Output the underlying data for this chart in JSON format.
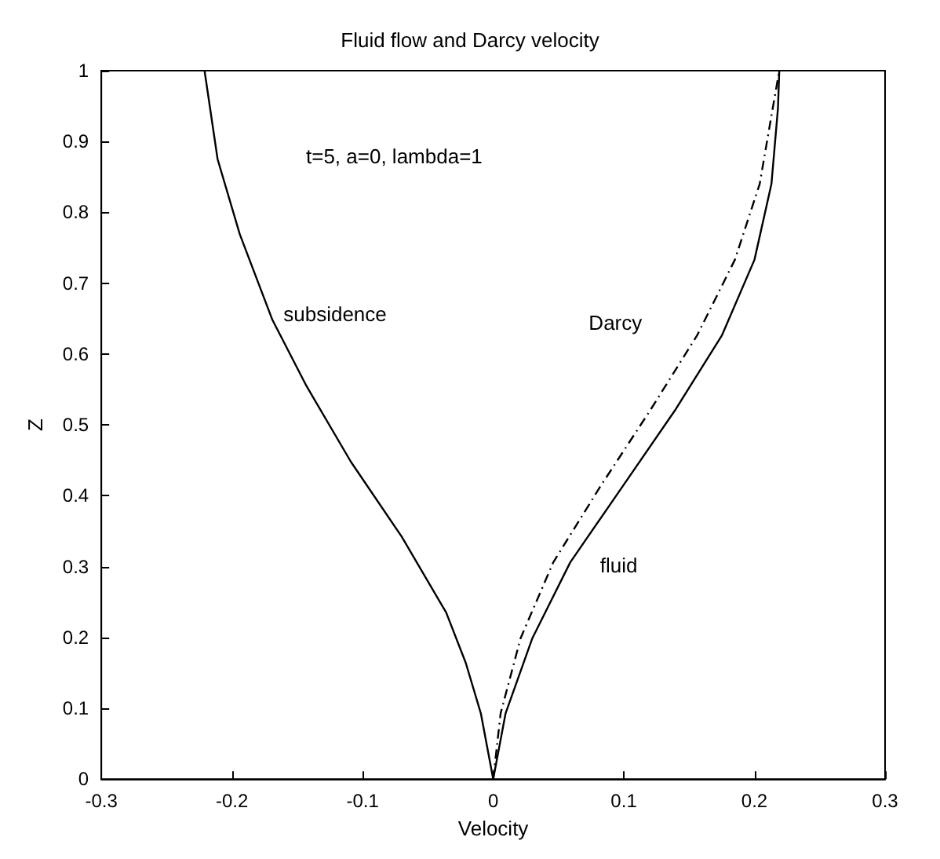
{
  "chart_data": {
    "type": "line",
    "title": "Fluid flow and Darcy velocity",
    "xlabel": "Velocity",
    "ylabel": "Z",
    "annotations": [
      "t=5, a=0, lambda=1"
    ],
    "series": [
      {
        "name": "subsidence",
        "color": "#000000",
        "line_style": "solid",
        "x": [
          0,
          -0.0095,
          -0.021,
          -0.036,
          -0.07,
          -0.109,
          -0.143,
          -0.169,
          -0.194,
          -0.211,
          -0.221
        ],
        "values": [
          0,
          0.093,
          0.164,
          0.235,
          0.342,
          0.448,
          0.555,
          0.648,
          0.769,
          0.875,
          1
        ]
      },
      {
        "name": "Darcy",
        "color": "#000000",
        "line_style": "dashdot",
        "x": [
          0,
          0.0057,
          0.021,
          0.046,
          0.082,
          0.12,
          0.156,
          0.185,
          0.204,
          0.214,
          0.219
        ],
        "values": [
          0,
          0.093,
          0.199,
          0.306,
          0.413,
          0.52,
          0.626,
          0.733,
          0.84,
          0.947,
          1
        ]
      },
      {
        "name": "fluid",
        "color": "#000000",
        "line_style": "solid",
        "x": [
          0,
          0.0095,
          0.03,
          0.059,
          0.099,
          0.139,
          0.175,
          0.2,
          0.213,
          0.218,
          0.219
        ],
        "values": [
          0,
          0.093,
          0.199,
          0.306,
          0.413,
          0.52,
          0.626,
          0.733,
          0.84,
          0.947,
          1
        ]
      }
    ],
    "xlim": [
      -0.3,
      0.3
    ],
    "xticks": [
      -0.3,
      -0.2,
      -0.1,
      0,
      0.1,
      0.2,
      0.3
    ],
    "ylim": [
      0,
      1
    ],
    "yticks": [
      0,
      0.1,
      0.2,
      0.3,
      0.4,
      0.5,
      0.6,
      0.7,
      0.8,
      0.9,
      1
    ],
    "grid": false,
    "legend": false,
    "marker": "none"
  }
}
